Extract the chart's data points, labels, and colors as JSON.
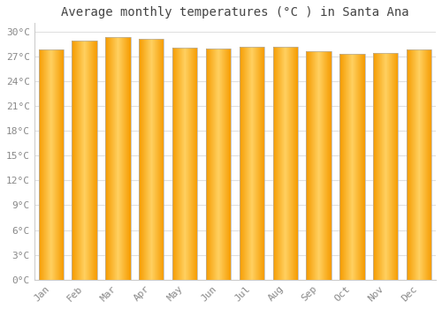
{
  "title": "Average monthly temperatures (°C ) in Santa Ana",
  "months": [
    "Jan",
    "Feb",
    "Mar",
    "Apr",
    "May",
    "Jun",
    "Jul",
    "Aug",
    "Sep",
    "Oct",
    "Nov",
    "Dec"
  ],
  "temperatures": [
    27.8,
    28.9,
    29.3,
    29.1,
    28.0,
    27.9,
    28.2,
    28.1,
    27.6,
    27.3,
    27.4,
    27.8
  ],
  "ylim": [
    0,
    31
  ],
  "yticks": [
    0,
    3,
    6,
    9,
    12,
    15,
    18,
    21,
    24,
    27,
    30
  ],
  "ytick_labels": [
    "0°C",
    "3°C",
    "6°C",
    "9°C",
    "12°C",
    "15°C",
    "18°C",
    "21°C",
    "24°C",
    "27°C",
    "30°C"
  ],
  "background_color": "#ffffff",
  "grid_color": "#e0e0e0",
  "bar_edge_color": "#b0b0b0",
  "bar_color_center": "#FFD060",
  "bar_color_edge": "#F59B00",
  "title_fontsize": 10,
  "tick_fontsize": 8,
  "font_family": "monospace",
  "bar_width": 0.75
}
